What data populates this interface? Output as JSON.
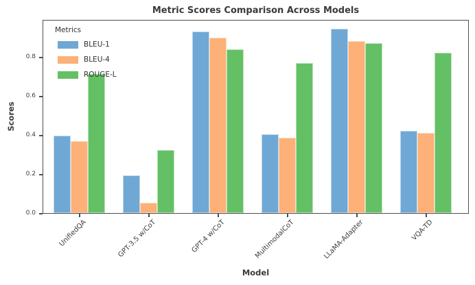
{
  "chart_data": {
    "type": "bar",
    "title": "Metric Scores Comparison Across Models",
    "xlabel": "Model",
    "ylabel": "Scores",
    "legend_title": "Metrics",
    "legend_position": "upper left",
    "grid": false,
    "x_tick_rotation": 45,
    "ylim": [
      0,
      0.993
    ],
    "yticks": [
      0.0,
      0.2,
      0.4,
      0.6,
      0.8
    ],
    "categories": [
      "UnifiedQA",
      "GPT-3.5 w/CoT",
      "GPT-4 w/CoT",
      "MultimodalCoT",
      "LLaMA-Adapter",
      "VQA-TD"
    ],
    "series": [
      {
        "name": "BLEU-1",
        "color": "#6FA8D4",
        "values": [
          0.397,
          0.192,
          0.93,
          0.405,
          0.945,
          0.42
        ]
      },
      {
        "name": "BLEU-4",
        "color": "#FDB077",
        "values": [
          0.37,
          0.052,
          0.9,
          0.385,
          0.88,
          0.41
        ]
      },
      {
        "name": "ROUGE-L",
        "color": "#64C064",
        "values": [
          0.714,
          0.323,
          0.84,
          0.77,
          0.87,
          0.82
        ]
      }
    ],
    "colors": {
      "spine": "#4d4d4d",
      "text": "#3a3a3a"
    }
  }
}
